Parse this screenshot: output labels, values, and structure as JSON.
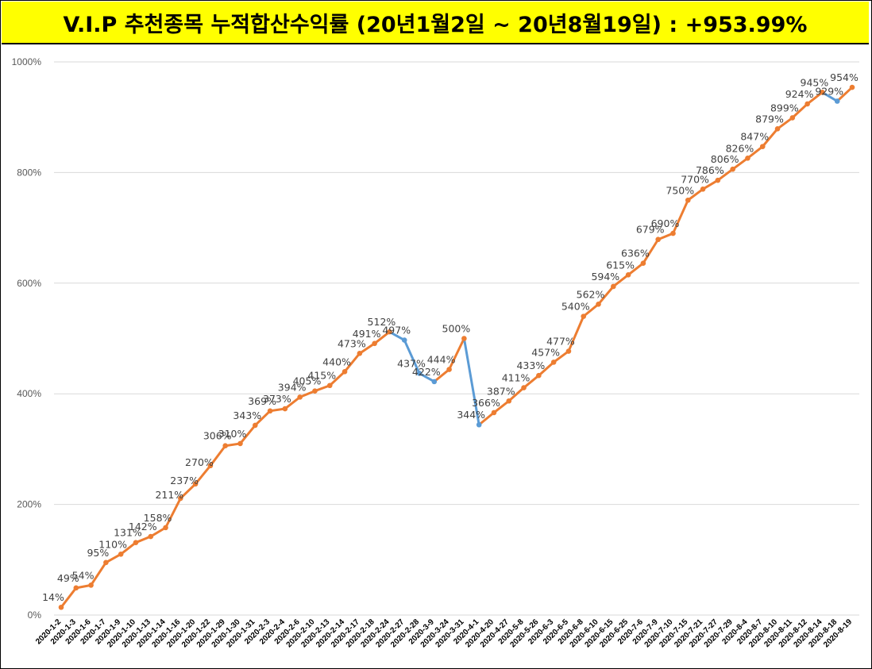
{
  "banner": {
    "title": "V.I.P 추천종목 누적합산수익률 (20년1월2일 ~ 20년8월19일) : +953.99%",
    "background": "#ffff00"
  },
  "chart_data": {
    "type": "line",
    "title": "V.I.P 추천종목 누적합산수익률 (20년1월2일 ~ 20년8월19일) : +953.99%",
    "xlabel": "",
    "ylabel": "",
    "ylim": [
      0,
      1000
    ],
    "y_ticks": [
      "0%",
      "200%",
      "400%",
      "600%",
      "800%",
      "1000%"
    ],
    "y_tick_values": [
      0,
      200,
      400,
      600,
      800,
      1000
    ],
    "grid": true,
    "up_color": "#ed7d31",
    "down_color": "#5b9bd5",
    "categories": [
      "2020-1-2",
      "2020-1-3",
      "2020-1-6",
      "2020-1-7",
      "2020-1-9",
      "2020-1-10",
      "2020-1-13",
      "2020-1-14",
      "2020-1-16",
      "2020-1-20",
      "2020-1-22",
      "2020-1-29",
      "2020-1-30",
      "2020-1-31",
      "2020-2-3",
      "2020-2-4",
      "2020-2-6",
      "2020-2-10",
      "2020-2-13",
      "2020-2-14",
      "2020-2-17",
      "2020-2-18",
      "2020-2-24",
      "2020-2-27",
      "2020-2-28",
      "2020-3-9",
      "2020-3-24",
      "2020-3-31",
      "2020-4-1",
      "2020-4-20",
      "2020-4-27",
      "2020-5-8",
      "2020-5-26",
      "2020-6-3",
      "2020-6-5",
      "2020-6-8",
      "2020-6-10",
      "2020-6-15",
      "2020-6-25",
      "2020-7-6",
      "2020-7-9",
      "2020-7-10",
      "2020-7-15",
      "2020-7-21",
      "2020-7-27",
      "2020-7-29",
      "2020-8-4",
      "2020-8-7",
      "2020-8-10",
      "2020-8-11",
      "2020-8-12",
      "2020-8-14",
      "2020-8-18",
      "2020-8-19"
    ],
    "values": [
      14,
      49,
      54,
      95,
      110,
      131,
      142,
      158,
      211,
      237,
      270,
      306,
      310,
      343,
      369,
      373,
      394,
      405,
      415,
      440,
      473,
      491,
      512,
      497,
      437,
      422,
      444,
      500,
      344,
      366,
      387,
      411,
      433,
      457,
      477,
      540,
      562,
      594,
      615,
      636,
      679,
      690,
      750,
      770,
      786,
      806,
      826,
      847,
      879,
      899,
      924,
      945,
      929,
      954
    ],
    "labels": [
      "14%",
      "49%",
      "54%",
      "95%",
      "110%",
      "131%",
      "142%",
      "158%",
      "",
      "",
      "",
      "306%",
      "310%",
      "343%",
      "369%",
      "373%",
      "394%",
      "405%",
      "415%",
      "440%",
      "473%",
      "491%",
      "512%",
      "497%",
      "437%",
      "422%",
      "444%",
      "500%",
      "344%",
      "366%",
      "387%",
      "411%",
      "433%",
      "457%",
      "477%",
      "540%",
      "562%",
      "594%",
      "615%",
      "636%",
      "679%",
      "690%",
      "750%",
      "770%",
      "786%",
      "806%",
      "826%",
      "847%",
      "879%",
      "899%",
      "924%",
      "945%",
      "929%",
      "954%"
    ],
    "labels_lower": [
      "",
      "",
      "",
      "",
      "",
      "",
      "",
      "",
      "211%",
      "237%",
      "270%",
      "",
      "",
      "",
      "",
      "",
      "",
      "",
      "",
      "",
      "",
      "",
      "",
      "",
      "",
      "",
      "",
      "",
      "",
      "",
      "",
      "",
      "",
      "",
      "",
      "",
      "",
      "",
      "",
      "",
      "",
      "",
      "",
      "",
      "",
      "",
      "",
      "",
      "",
      "",
      "",
      "",
      "",
      ""
    ]
  }
}
